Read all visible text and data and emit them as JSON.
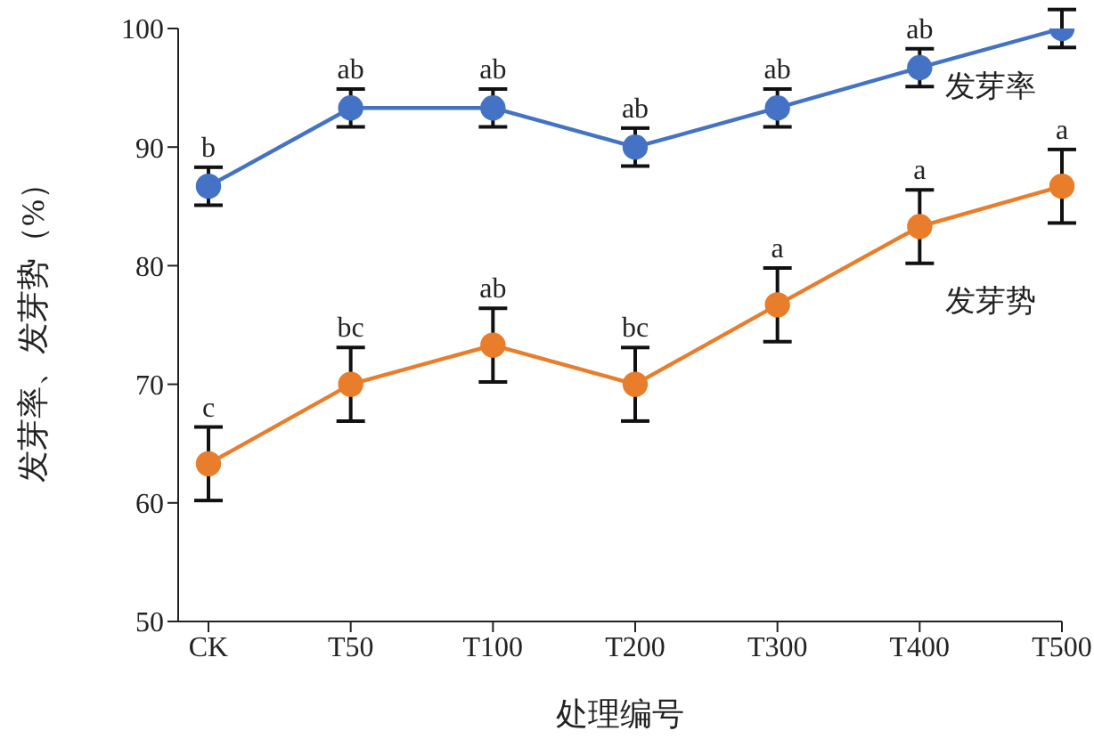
{
  "chart_data": {
    "type": "line",
    "xlabel": "处理编号",
    "ylabel": "发芽率、发芽势（%）",
    "categories": [
      "CK",
      "T50",
      "T100",
      "T200",
      "T300",
      "T400",
      "T500"
    ],
    "series": [
      {
        "name": "发芽率",
        "color": "#4472c4",
        "values": [
          86.7,
          93.3,
          93.3,
          90.0,
          93.3,
          96.7,
          100.0
        ],
        "errors": [
          1.6,
          1.6,
          1.6,
          1.6,
          1.6,
          1.6,
          1.6
        ]
      },
      {
        "name": "发芽势",
        "color": "#e87d2b",
        "values": [
          63.3,
          70.0,
          73.3,
          70.0,
          76.7,
          83.3,
          86.7
        ],
        "errors": [
          3.1,
          3.1,
          3.1,
          3.1,
          3.1,
          3.1,
          3.1
        ]
      }
    ],
    "annotations": [
      {
        "text": "b",
        "x": "CK",
        "y": 88.3
      },
      {
        "text": "ab",
        "x": "T50",
        "y": 94.9
      },
      {
        "text": "ab",
        "x": "T100",
        "y": 94.9
      },
      {
        "text": "ab",
        "x": "T200",
        "y": 91.6
      },
      {
        "text": "ab",
        "x": "T300",
        "y": 94.9
      },
      {
        "text": "ab",
        "x": "T400",
        "y": 98.3
      },
      {
        "text": "c",
        "x": "CK",
        "y": 66.4
      },
      {
        "text": "bc",
        "x": "T50",
        "y": 73.1
      },
      {
        "text": "ab",
        "x": "T100",
        "y": 76.4
      },
      {
        "text": "bc",
        "x": "T200",
        "y": 73.1
      },
      {
        "text": "a",
        "x": "T300",
        "y": 79.8
      },
      {
        "text": "a",
        "x": "T400",
        "y": 86.4
      },
      {
        "text": "a",
        "x": "T500",
        "y": 89.8
      }
    ],
    "ylim": [
      50,
      100
    ],
    "yticks": [
      50,
      60,
      70,
      80,
      90,
      100
    ],
    "grid": false,
    "legend": false,
    "marker": "circle",
    "line_style": "solid"
  }
}
